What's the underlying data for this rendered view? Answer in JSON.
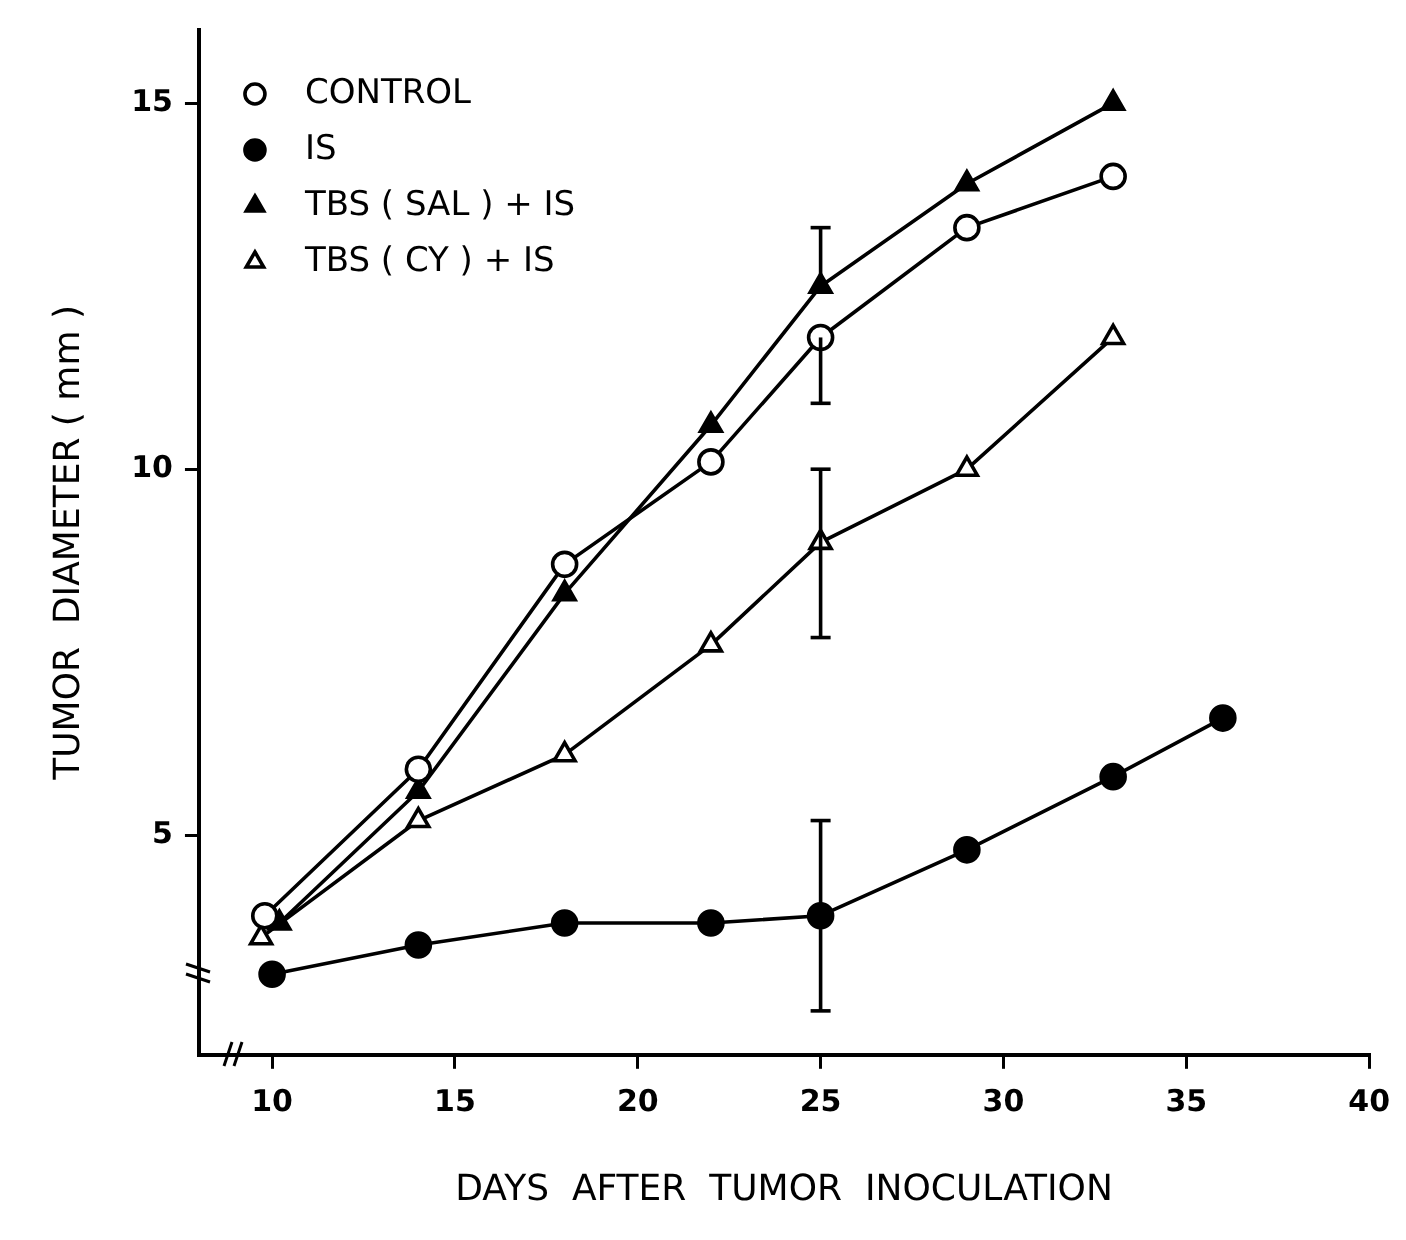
{
  "chart_data": {
    "type": "line",
    "xlabel": "DAYS  AFTER  TUMOR  INOCULATION",
    "ylabel": "TUMOR  DIAMETER ( mm )",
    "xlim": [
      8,
      40
    ],
    "xticks": [
      10,
      15,
      20,
      25,
      30,
      35,
      40
    ],
    "ylim": [
      2,
      16
    ],
    "yticks": [
      5,
      10,
      15
    ],
    "grid": false,
    "legend": "top left",
    "line_style": "solid",
    "series": [
      {
        "name": "CONTROL",
        "color": "#000000",
        "marker": "circle",
        "colors": [
          "#ffffff",
          "#ffffff",
          "#ffffff",
          "#ffffff",
          "#ffffff",
          "#ffffff",
          "#ffffff"
        ],
        "x": [
          9.8,
          14,
          18,
          22,
          25,
          29,
          33
        ],
        "values": [
          3.9,
          5.9,
          8.7,
          10.1,
          11.8,
          13.3,
          14.0
        ],
        "errors": [
          null,
          null,
          null,
          null,
          [
            10.9,
            11.8
          ],
          null,
          null
        ]
      },
      {
        "name": "IS",
        "color": "#000000",
        "marker": "circle",
        "x": [
          10,
          14,
          18,
          22,
          25,
          29,
          33,
          36
        ],
        "values": [
          3.1,
          3.5,
          3.8,
          3.8,
          3.9,
          4.8,
          5.8,
          6.6
        ],
        "errors": [
          null,
          null,
          null,
          null,
          [
            2.6,
            5.2
          ],
          null,
          null,
          null
        ]
      },
      {
        "name": "TBS ( SAL ) + IS",
        "color": "#000000",
        "marker": "triangle",
        "x": [
          10.2,
          14,
          18,
          22,
          25,
          29,
          33
        ],
        "values": [
          3.8,
          5.6,
          8.3,
          10.6,
          12.5,
          13.9,
          15.0
        ],
        "errors": [
          null,
          null,
          null,
          null,
          [
            12.5,
            13.3
          ],
          null,
          null
        ]
      },
      {
        "name": "TBS ( CY ) + IS",
        "color": "#000000",
        "marker": "triangle",
        "colors": [
          "#ffffff",
          "#ffffff",
          "#ffffff",
          "#ffffff",
          "#ffffff",
          "#ffffff",
          "#ffffff"
        ],
        "x": [
          9.7,
          14,
          18,
          22,
          25,
          29,
          33
        ],
        "values": [
          3.6,
          5.2,
          6.1,
          7.6,
          9.0,
          10.0,
          11.8
        ],
        "errors": [
          null,
          null,
          null,
          null,
          [
            7.7,
            10.0
          ],
          null,
          null
        ]
      }
    ]
  }
}
